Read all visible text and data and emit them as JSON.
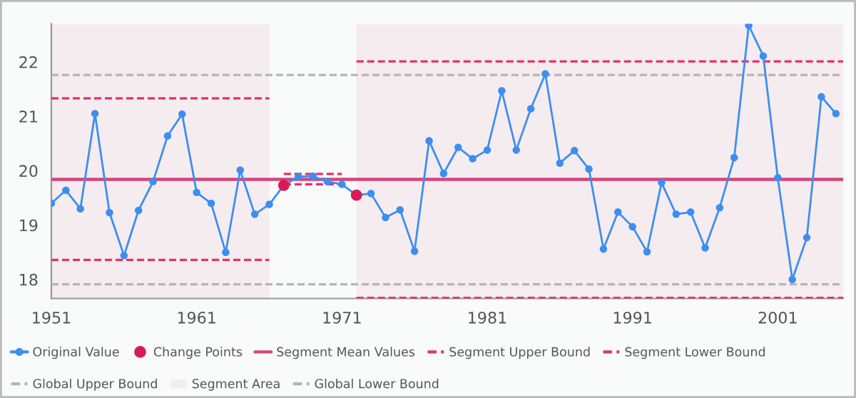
{
  "chart_data": {
    "type": "line",
    "xlim": [
      1951,
      2005.5
    ],
    "ylim": [
      17.65,
      22.7
    ],
    "xticks": [
      1951,
      1961,
      1971,
      1981,
      1991,
      2001
    ],
    "yticks": [
      18,
      19,
      20,
      21,
      22
    ],
    "grid": false,
    "legend": "bottom",
    "bands": [
      {
        "axis": "x",
        "from": 1951,
        "to": 1966,
        "label": "Segment Area",
        "color": "#f5ecef"
      },
      {
        "axis": "x",
        "from": 1972,
        "to": 2005.5,
        "color": "#f5ecef"
      }
    ],
    "series": [
      {
        "name": "Original Value",
        "color": "#3d8ef0",
        "marker": "circle",
        "x": [
          1951,
          1952,
          1953,
          1954,
          1955,
          1956,
          1957,
          1958,
          1959,
          1960,
          1961,
          1962,
          1963,
          1964,
          1965,
          1966,
          1967,
          1968,
          1969,
          1970,
          1971,
          1972,
          1973,
          1974,
          1975,
          1976,
          1977,
          1978,
          1979,
          1980,
          1981,
          1982,
          1983,
          1984,
          1985,
          1986,
          1987,
          1988,
          1989,
          1990,
          1991,
          1992,
          1993,
          1994,
          1995,
          1996,
          1997,
          1998,
          1999,
          2000,
          2001,
          2002,
          2003,
          2004,
          2005
        ],
        "values": [
          19.4,
          19.64,
          19.3,
          21.05,
          19.23,
          18.44,
          19.27,
          19.8,
          20.64,
          21.04,
          19.6,
          19.4,
          18.5,
          20.01,
          19.2,
          19.38,
          19.73,
          19.89,
          19.9,
          19.8,
          19.75,
          19.55,
          19.58,
          19.14,
          19.28,
          18.52,
          20.55,
          19.95,
          20.43,
          20.22,
          20.38,
          21.47,
          20.38,
          21.14,
          21.78,
          20.14,
          20.37,
          20.03,
          18.56,
          19.24,
          18.97,
          18.51,
          19.78,
          19.2,
          19.24,
          18.58,
          19.32,
          20.24,
          22.67,
          22.11,
          19.87,
          18.0,
          18.77,
          21.36,
          21.05
        ]
      },
      {
        "name": "Change Points",
        "type": "scatter",
        "color": "#d81b55",
        "marker": "circle",
        "x": [
          1967,
          1972
        ],
        "values": [
          19.73,
          19.55
        ]
      },
      {
        "name": "Segment Mean Values",
        "type": "line",
        "color": "#d6457a",
        "line_style": "solid",
        "x": [
          1951,
          2005.5
        ],
        "values": [
          19.84,
          19.84
        ]
      },
      {
        "name": "Segment Upper Bound",
        "type": "line",
        "color": "#e0336e",
        "line_style": "dashed",
        "x": [
          1951,
          1966
        ],
        "values": [
          21.33,
          21.33
        ]
      },
      {
        "type": "line",
        "color": "#e0336e",
        "line_style": "dashed",
        "x": [
          1967,
          1971
        ],
        "values": [
          19.94,
          19.94
        ]
      },
      {
        "type": "line",
        "color": "#e0336e",
        "line_style": "dashed",
        "x": [
          1972,
          2005.5
        ],
        "values": [
          22.01,
          22.01
        ]
      },
      {
        "name": "Segment Lower Bound",
        "type": "line",
        "color": "#e0336e",
        "line_style": "dashed",
        "x": [
          1951,
          1966
        ],
        "values": [
          18.36,
          18.36
        ]
      },
      {
        "type": "line",
        "color": "#e0336e",
        "line_style": "dashed",
        "x": [
          1967,
          1971
        ],
        "values": [
          19.75,
          19.75
        ]
      },
      {
        "type": "line",
        "color": "#e0336e",
        "line_style": "dashed",
        "x": [
          1972,
          2005.5
        ],
        "values": [
          17.66,
          17.66
        ]
      },
      {
        "name": "Global Upper Bound",
        "type": "line",
        "color": "#b5b5b5",
        "line_style": "dashed",
        "x": [
          1951,
          2005.5
        ],
        "values": [
          21.76,
          21.76
        ]
      },
      {
        "name": "Global Lower Bound",
        "type": "line",
        "color": "#b5b5b5",
        "line_style": "dashed",
        "x": [
          1951,
          2005.5
        ],
        "values": [
          17.91,
          17.91
        ]
      }
    ]
  }
}
